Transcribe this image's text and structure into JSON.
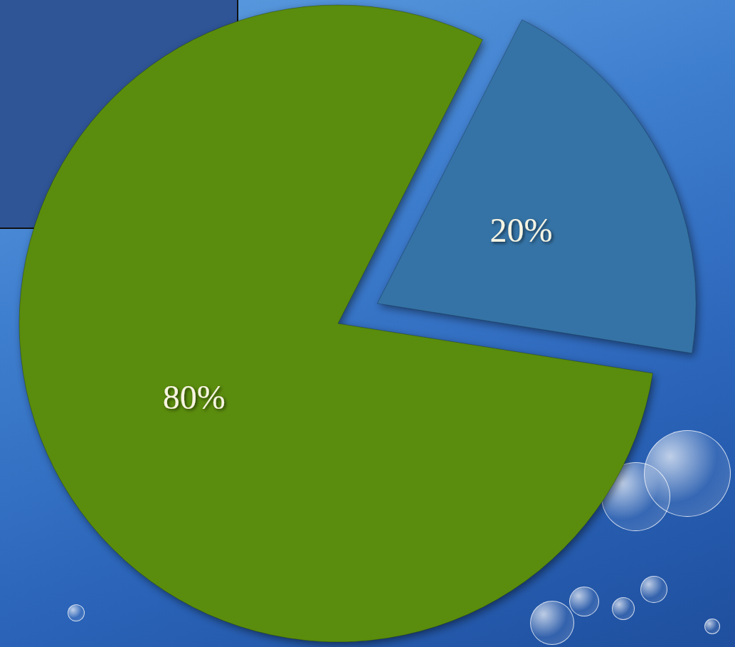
{
  "chart_data": {
    "type": "pie",
    "values": [
      80,
      20
    ],
    "value_labels": [
      "80%",
      "20%"
    ],
    "colors": [
      "#5a8c0c",
      "#3473a6"
    ],
    "data_labels": true
  }
}
